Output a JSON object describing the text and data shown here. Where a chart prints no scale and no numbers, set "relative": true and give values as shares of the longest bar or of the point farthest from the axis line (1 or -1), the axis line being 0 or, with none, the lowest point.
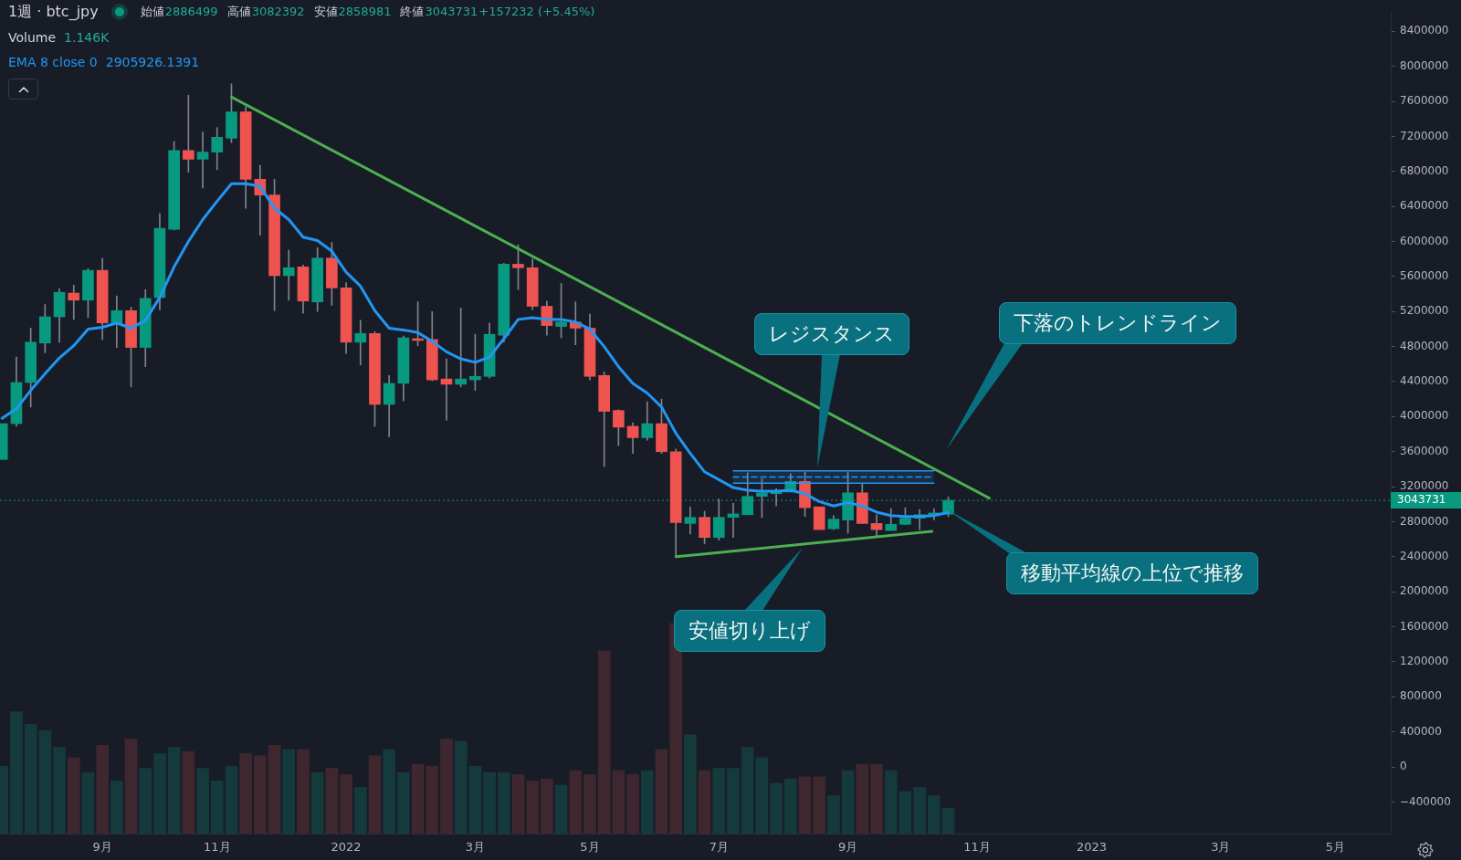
{
  "chart_data": [
    {
      "type": "candlestick",
      "title": "1週 · btc_jpy",
      "x": [
        "2021-07-19",
        "2021-07-26",
        "2021-08-02",
        "2021-08-09",
        "2021-08-16",
        "2021-08-23",
        "2021-08-30",
        "2021-09-06",
        "2021-09-13",
        "2021-09-20",
        "2021-09-27",
        "2021-10-04",
        "2021-10-11",
        "2021-10-18",
        "2021-10-25",
        "2021-11-01",
        "2021-11-08",
        "2021-11-15",
        "2021-11-22",
        "2021-11-29",
        "2021-12-06",
        "2021-12-13",
        "2021-12-20",
        "2021-12-27",
        "2022-01-03",
        "2022-01-10",
        "2022-01-17",
        "2022-01-24",
        "2022-01-31",
        "2022-02-07",
        "2022-02-14",
        "2022-02-21",
        "2022-02-28",
        "2022-03-07",
        "2022-03-14",
        "2022-03-21",
        "2022-03-28",
        "2022-04-04",
        "2022-04-11",
        "2022-04-18",
        "2022-04-25",
        "2022-05-02",
        "2022-05-09",
        "2022-05-16",
        "2022-05-23",
        "2022-05-30",
        "2022-06-06",
        "2022-06-13",
        "2022-06-20",
        "2022-06-27",
        "2022-07-04",
        "2022-07-11",
        "2022-07-18",
        "2022-07-25",
        "2022-08-01",
        "2022-08-08",
        "2022-08-15",
        "2022-08-22",
        "2022-08-29",
        "2022-09-05",
        "2022-09-12",
        "2022-09-19",
        "2022-09-26",
        "2022-10-03",
        "2022-10-10",
        "2022-10-17",
        "2022-10-24"
      ],
      "ohlc": [
        [
          3510000,
          3920000,
          3510000,
          3920000
        ],
        [
          3920000,
          4680000,
          3890000,
          4390000
        ],
        [
          4390000,
          5010000,
          4110000,
          4850000
        ],
        [
          4840000,
          5280000,
          4730000,
          5140000
        ],
        [
          5140000,
          5460000,
          4850000,
          5420000
        ],
        [
          5410000,
          5500000,
          5110000,
          5330000
        ],
        [
          5330000,
          5690000,
          5130000,
          5670000
        ],
        [
          5670000,
          5810000,
          4880000,
          5070000
        ],
        [
          5070000,
          5380000,
          4790000,
          5210000
        ],
        [
          5210000,
          5250000,
          4340000,
          4790000
        ],
        [
          4790000,
          5450000,
          4570000,
          5350000
        ],
        [
          5360000,
          6320000,
          5220000,
          6150000
        ],
        [
          6140000,
          7140000,
          6130000,
          7040000
        ],
        [
          7040000,
          7670000,
          6790000,
          6940000
        ],
        [
          6940000,
          7250000,
          6610000,
          7020000
        ],
        [
          7020000,
          7300000,
          6820000,
          7190000
        ],
        [
          7180000,
          7800000,
          7130000,
          7480000
        ],
        [
          7480000,
          7540000,
          6380000,
          6710000
        ],
        [
          6710000,
          6870000,
          6070000,
          6530000
        ],
        [
          6530000,
          6710000,
          5210000,
          5610000
        ],
        [
          5610000,
          5900000,
          5330000,
          5700000
        ],
        [
          5710000,
          5730000,
          5180000,
          5320000
        ],
        [
          5310000,
          5930000,
          5200000,
          5810000
        ],
        [
          5810000,
          5990000,
          5270000,
          5470000
        ],
        [
          5470000,
          5530000,
          4720000,
          4850000
        ],
        [
          4850000,
          5100000,
          4590000,
          4950000
        ],
        [
          4950000,
          4970000,
          3890000,
          4140000
        ],
        [
          4140000,
          4470000,
          3770000,
          4380000
        ],
        [
          4380000,
          4920000,
          4180000,
          4900000
        ],
        [
          4890000,
          5310000,
          4810000,
          4870000
        ],
        [
          4880000,
          5200000,
          4410000,
          4420000
        ],
        [
          4430000,
          4660000,
          3960000,
          4370000
        ],
        [
          4370000,
          5240000,
          4340000,
          4430000
        ],
        [
          4420000,
          4940000,
          4300000,
          4460000
        ],
        [
          4460000,
          5070000,
          4440000,
          4940000
        ],
        [
          4930000,
          5750000,
          4850000,
          5740000
        ],
        [
          5740000,
          5960000,
          5450000,
          5700000
        ],
        [
          5700000,
          5800000,
          5220000,
          5260000
        ],
        [
          5260000,
          5320000,
          4930000,
          5040000
        ],
        [
          5030000,
          5520000,
          4900000,
          5080000
        ],
        [
          5080000,
          5310000,
          4820000,
          5010000
        ],
        [
          5010000,
          5170000,
          4420000,
          4460000
        ],
        [
          4470000,
          4510000,
          3430000,
          4060000
        ],
        [
          4070000,
          4080000,
          3670000,
          3880000
        ],
        [
          3890000,
          3930000,
          3580000,
          3760000
        ],
        [
          3760000,
          4170000,
          3730000,
          3920000
        ],
        [
          3920000,
          4200000,
          3580000,
          3600000
        ],
        [
          3600000,
          3630000,
          2410000,
          2790000
        ],
        [
          2780000,
          2970000,
          2660000,
          2850000
        ],
        [
          2850000,
          2920000,
          2550000,
          2620000
        ],
        [
          2620000,
          3060000,
          2590000,
          2850000
        ],
        [
          2850000,
          3010000,
          2620000,
          2890000
        ],
        [
          2880000,
          3360000,
          2880000,
          3090000
        ],
        [
          3090000,
          3290000,
          2850000,
          3130000
        ],
        [
          3120000,
          3180000,
          2980000,
          3140000
        ],
        [
          3140000,
          3350000,
          3140000,
          3260000
        ],
        [
          3260000,
          3370000,
          2860000,
          2960000
        ],
        [
          2970000,
          2970000,
          2710000,
          2710000
        ],
        [
          2720000,
          2870000,
          2710000,
          2830000
        ],
        [
          2820000,
          3370000,
          2670000,
          3130000
        ],
        [
          3130000,
          3240000,
          2780000,
          2780000
        ],
        [
          2780000,
          2880000,
          2640000,
          2710000
        ],
        [
          2700000,
          2950000,
          2700000,
          2770000
        ],
        [
          2770000,
          2960000,
          2770000,
          2840000
        ],
        [
          2840000,
          2940000,
          2710000,
          2880000
        ],
        [
          2880000,
          2950000,
          2820000,
          2900000
        ],
        [
          2886499,
          3082392,
          2858981,
          3043731
        ]
      ],
      "colors": [
        "#089981",
        "#089981",
        "#089981",
        "#089981",
        "#089981",
        "#ef5350",
        "#089981",
        "#ef5350",
        "#089981",
        "#ef5350",
        "#089981",
        "#089981",
        "#089981",
        "#ef5350",
        "#089981",
        "#089981",
        "#089981",
        "#ef5350",
        "#ef5350",
        "#ef5350",
        "#089981",
        "#ef5350",
        "#089981",
        "#ef5350",
        "#ef5350",
        "#089981",
        "#ef5350",
        "#089981",
        "#089981",
        "#ef5350",
        "#ef5350",
        "#ef5350",
        "#089981",
        "#089981",
        "#089981",
        "#089981",
        "#ef5350",
        "#ef5350",
        "#ef5350",
        "#089981",
        "#ef5350",
        "#ef5350",
        "#ef5350",
        "#ef5350",
        "#ef5350",
        "#089981",
        "#ef5350",
        "#ef5350",
        "#089981",
        "#ef5350",
        "#089981",
        "#089981",
        "#089981",
        "#089981",
        "#089981",
        "#089981",
        "#ef5350",
        "#ef5350",
        "#089981",
        "#089981",
        "#ef5350",
        "#ef5350",
        "#089981",
        "#089981",
        "#089981",
        "#089981",
        "#089981"
      ],
      "xlim": [
        "2021-07-18",
        "2023-05-28"
      ],
      "xticks": [
        {
          "value": "2021-09-06",
          "label": "9月"
        },
        {
          "value": "2021-11-01",
          "label": "11月"
        },
        {
          "value": "2022-01-03",
          "label": "2022"
        },
        {
          "value": "2022-03-07",
          "label": "3月"
        },
        {
          "value": "2022-05-02",
          "label": "5月"
        },
        {
          "value": "2022-07-04",
          "label": "7月"
        },
        {
          "value": "2022-09-05",
          "label": "9月"
        },
        {
          "value": "2022-11-07",
          "label": "11月"
        },
        {
          "value": "2023-01-02",
          "label": "2023"
        },
        {
          "value": "2023-03-06",
          "label": "3月"
        },
        {
          "value": "2023-05-01",
          "label": "5月"
        }
      ],
      "ylim": [
        -760000,
        8630000
      ],
      "yticks": [
        {
          "value": -400000,
          "label": "−400000"
        },
        0,
        400000,
        800000,
        1200000,
        1600000,
        2000000,
        2400000,
        2800000,
        3200000,
        3600000,
        4000000,
        4400000,
        4800000,
        5200000,
        5600000,
        6000000,
        6400000,
        6800000,
        7200000,
        7600000,
        8000000,
        8400000
      ],
      "series": [
        {
          "type": "line",
          "name": "EMA 8 close 0",
          "color": "#2196f3",
          "values": [
            3980000,
            4090000,
            4300000,
            4490000,
            4670000,
            4810000,
            5000000,
            5020000,
            5070000,
            5010000,
            5100000,
            5360000,
            5710000,
            6000000,
            6250000,
            6460000,
            6660000,
            6660000,
            6630000,
            6380000,
            6250000,
            6050000,
            6010000,
            5890000,
            5650000,
            5490000,
            5210000,
            5010000,
            4990000,
            4960000,
            4860000,
            4740000,
            4660000,
            4620000,
            4680000,
            4890000,
            5110000,
            5130000,
            5110000,
            5110000,
            5080000,
            5000000,
            4800000,
            4570000,
            4380000,
            4270000,
            4110000,
            3810000,
            3580000,
            3370000,
            3280000,
            3190000,
            3160000,
            3150000,
            3150000,
            3160000,
            3120000,
            3030000,
            2980000,
            3020000,
            2980000,
            2910000,
            2870000,
            2860000,
            2860000,
            2870000,
            2905926.1391
          ]
        },
        {
          "type": "line",
          "color": "#4caf50",
          "x": [
            "2021-11-08",
            "2022-11-13"
          ],
          "values": [
            7650000,
            3070000
          ]
        },
        {
          "type": "line",
          "color": "#4caf50",
          "x": [
            "2022-06-13",
            "2022-10-16"
          ],
          "values": [
            2400000,
            2690000
          ]
        },
        {
          "type": "line",
          "color": "#2196f3",
          "line_style": "dashed",
          "x": [
            "2022-07-11",
            "2022-10-17"
          ],
          "values": [
            3310000,
            3310000
          ],
          "lower": [
            3240000,
            3240000
          ],
          "upper": [
            3380000,
            3380000
          ]
        },
        {
          "type": "line",
          "color": "#2196f3",
          "x": [
            "2022-07-11",
            "2022-10-17"
          ],
          "values": [
            3380000,
            3380000
          ]
        },
        {
          "type": "line",
          "color": "#2196f3",
          "x": [
            "2022-07-11",
            "2022-10-17"
          ],
          "values": [
            3240000,
            3240000
          ]
        }
      ],
      "ref_lines": [
        {
          "axis": "y",
          "value": 3043731,
          "label": "3043731",
          "color": "#089981",
          "line_style": "dotted"
        }
      ],
      "annotations": [
        "始値",
        "2886499",
        "高値",
        "3082392",
        "安値",
        "2858981",
        "終値",
        "3043731",
        "+157232 (+5.45%)",
        "2905926.1391",
        {
          "text": "レジスタンス",
          "x": "2022-08-21",
          "y": 3410000
        },
        "下落のトレンドライン",
        "移動平均線の上位で推移",
        "安値切り上げ"
      ],
      "legend": "top left"
    },
    {
      "type": "bar",
      "relative": true,
      "x": [
        "2021-07-19",
        "2021-07-26",
        "2021-08-02",
        "2021-08-09",
        "2021-08-16",
        "2021-08-23",
        "2021-08-30",
        "2021-09-06",
        "2021-09-13",
        "2021-09-20",
        "2021-09-27",
        "2021-10-04",
        "2021-10-11",
        "2021-10-18",
        "2021-10-25",
        "2021-11-01",
        "2021-11-08",
        "2021-11-15",
        "2021-11-22",
        "2021-11-29",
        "2021-12-06",
        "2021-12-13",
        "2021-12-20",
        "2021-12-27",
        "2022-01-03",
        "2022-01-10",
        "2022-01-17",
        "2022-01-24",
        "2022-01-31",
        "2022-02-07",
        "2022-02-14",
        "2022-02-21",
        "2022-02-28",
        "2022-03-07",
        "2022-03-14",
        "2022-03-21",
        "2022-03-28",
        "2022-04-04",
        "2022-04-11",
        "2022-04-18",
        "2022-04-25",
        "2022-05-02",
        "2022-05-09",
        "2022-05-16",
        "2022-05-23",
        "2022-05-30",
        "2022-06-06",
        "2022-06-13",
        "2022-06-20",
        "2022-06-27",
        "2022-07-04",
        "2022-07-11",
        "2022-07-18",
        "2022-07-25",
        "2022-08-01",
        "2022-08-08",
        "2022-08-15",
        "2022-08-22",
        "2022-08-29",
        "2022-09-05",
        "2022-09-12",
        "2022-09-19",
        "2022-09-26",
        "2022-10-03",
        "2022-10-10",
        "2022-10-17",
        "2022-10-24"
      ],
      "xlim": [
        "2021-07-18",
        "2023-05-28"
      ],
      "series": [
        {
          "name": "Volume",
          "colors": [
            "#153a3c",
            "#153a3c",
            "#153a3c",
            "#153a3c",
            "#153a3c",
            "#3f272f",
            "#153a3c",
            "#3f272f",
            "#153a3c",
            "#3f272f",
            "#153a3c",
            "#153a3c",
            "#153a3c",
            "#3f272f",
            "#153a3c",
            "#153a3c",
            "#153a3c",
            "#3f272f",
            "#3f272f",
            "#3f272f",
            "#153a3c",
            "#3f272f",
            "#153a3c",
            "#3f272f",
            "#3f272f",
            "#153a3c",
            "#3f272f",
            "#153a3c",
            "#153a3c",
            "#3f272f",
            "#3f272f",
            "#3f272f",
            "#153a3c",
            "#153a3c",
            "#153a3c",
            "#153a3c",
            "#3f272f",
            "#3f272f",
            "#3f272f",
            "#153a3c",
            "#3f272f",
            "#3f272f",
            "#3f272f",
            "#3f272f",
            "#3f272f",
            "#153a3c",
            "#3f272f",
            "#3f272f",
            "#153a3c",
            "#3f272f",
            "#153a3c",
            "#153a3c",
            "#153a3c",
            "#153a3c",
            "#153a3c",
            "#153a3c",
            "#3f272f",
            "#3f272f",
            "#153a3c",
            "#153a3c",
            "#3f272f",
            "#3f272f",
            "#153a3c",
            "#153a3c",
            "#153a3c",
            "#153a3c",
            "#153a3c"
          ],
          "values": [
            0.32,
            0.58,
            0.52,
            0.49,
            0.41,
            0.36,
            0.29,
            0.42,
            0.25,
            0.45,
            0.31,
            0.38,
            0.41,
            0.39,
            0.31,
            0.25,
            0.32,
            0.38,
            0.37,
            0.42,
            0.4,
            0.4,
            0.29,
            0.31,
            0.28,
            0.22,
            0.37,
            0.4,
            0.29,
            0.33,
            0.32,
            0.45,
            0.44,
            0.32,
            0.29,
            0.29,
            0.28,
            0.25,
            0.26,
            0.23,
            0.3,
            0.28,
            0.87,
            0.3,
            0.28,
            0.3,
            0.4,
            1,
            0.47,
            0.3,
            0.31,
            0.31,
            0.41,
            0.36,
            0.24,
            0.26,
            0.27,
            0.27,
            0.18,
            0.3,
            0.33,
            0.33,
            0.3,
            0.2,
            0.22,
            0.18,
            0.12
          ]
        }
      ],
      "annotations": [
        "1.146K"
      ],
      "legend": "top left"
    }
  ]
}
